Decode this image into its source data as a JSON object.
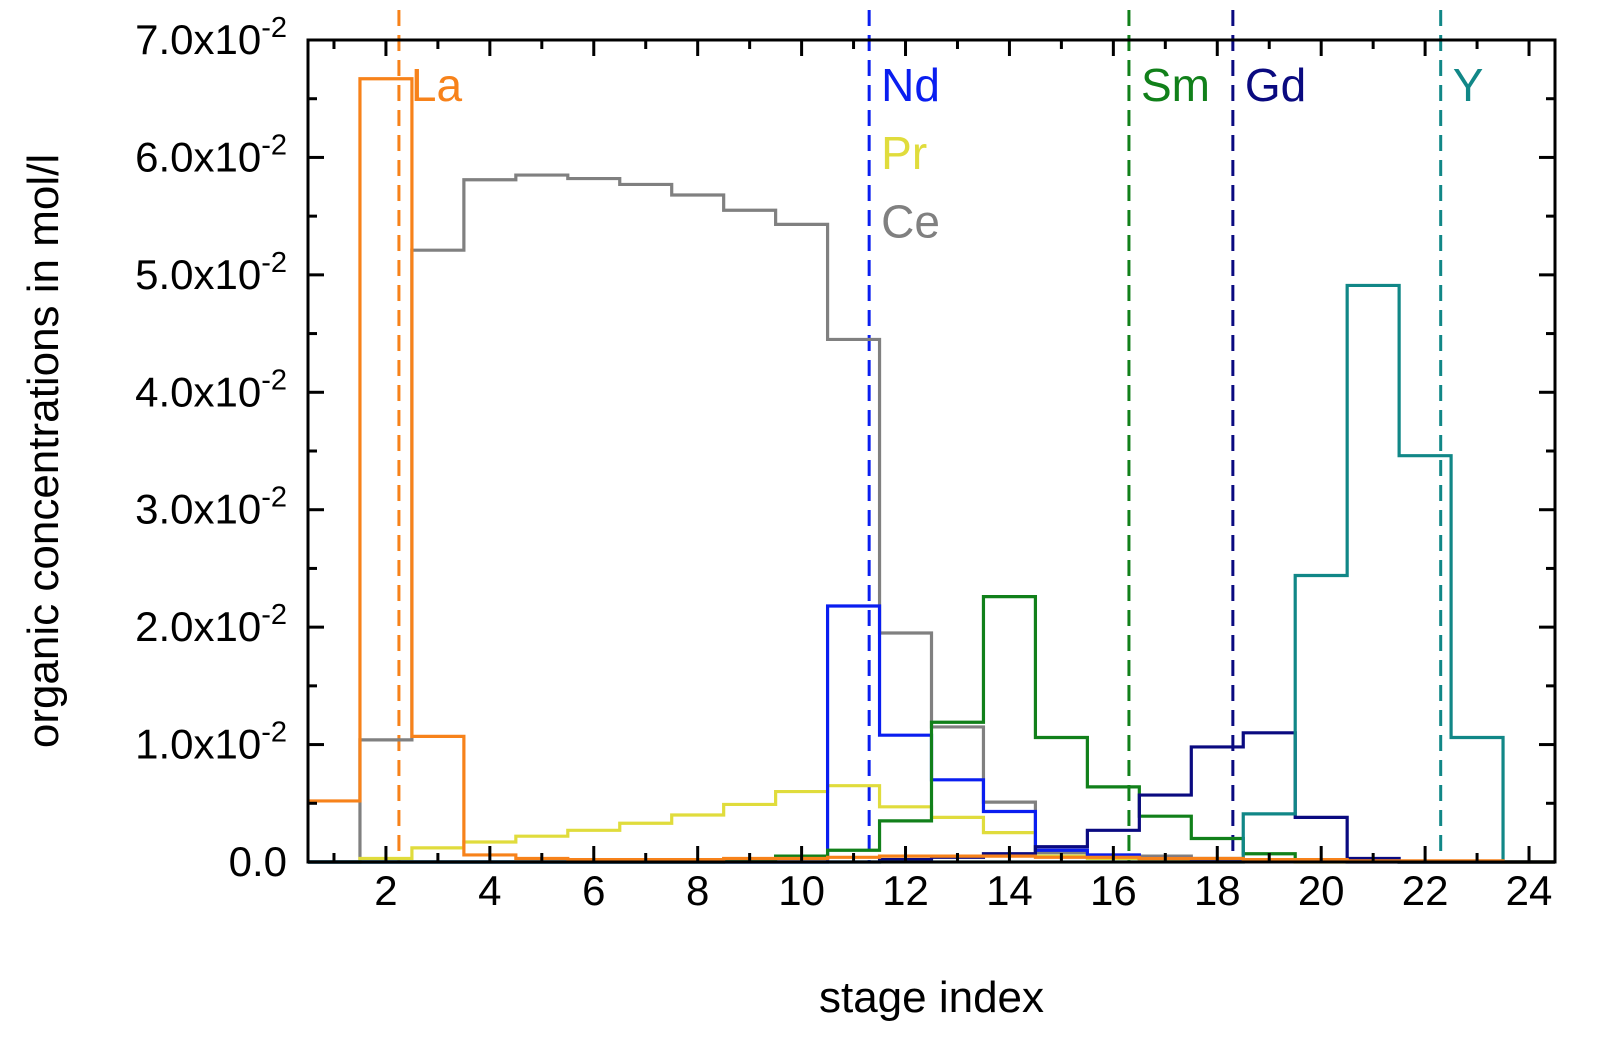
{
  "chart_data": {
    "type": "line",
    "style": "step",
    "title": "",
    "xlabel": "stage index",
    "ylabel": "organic concentrations in mol/l",
    "xlim": [
      0.5,
      24.5
    ],
    "ylim": [
      0,
      0.07
    ],
    "grid": false,
    "x_ticks": [
      2,
      4,
      6,
      8,
      10,
      12,
      14,
      16,
      18,
      20,
      22,
      24
    ],
    "x_tick_labels": [
      "2",
      "4",
      "6",
      "8",
      "10",
      "12",
      "14",
      "16",
      "18",
      "20",
      "22",
      "24"
    ],
    "y_ticks": [
      0,
      0.01,
      0.02,
      0.03,
      0.04,
      0.05,
      0.06,
      0.07
    ],
    "y_tick_labels": [
      {
        "mantissa": "0.0",
        "exponent": ""
      },
      {
        "mantissa": "1.0x10",
        "exponent": "-2"
      },
      {
        "mantissa": "2.0x10",
        "exponent": "-2"
      },
      {
        "mantissa": "3.0x10",
        "exponent": "-2"
      },
      {
        "mantissa": "4.0x10",
        "exponent": "-2"
      },
      {
        "mantissa": "5.0x10",
        "exponent": "-2"
      },
      {
        "mantissa": "6.0x10",
        "exponent": "-2"
      },
      {
        "mantissa": "7.0x10",
        "exponent": "-2"
      }
    ],
    "x": [
      1,
      2,
      3,
      4,
      5,
      6,
      7,
      8,
      9,
      10,
      11,
      12,
      13,
      14,
      15,
      16,
      17,
      18,
      19,
      20,
      21,
      22,
      23,
      24
    ],
    "series": [
      {
        "name": "Ce",
        "color": "#808080",
        "values": [
          0.0,
          0.0104,
          0.0521,
          0.0581,
          0.0585,
          0.0582,
          0.0577,
          0.0568,
          0.0555,
          0.0543,
          0.0445,
          0.0195,
          0.0115,
          0.0051,
          0.0008,
          0.0006,
          0.0005,
          0.0003,
          0.0002,
          0.0001,
          0.0001,
          0.0,
          0.0,
          0.0
        ]
      },
      {
        "name": "Pr",
        "color": "#e0dc3c",
        "values": [
          0.0,
          0.0003,
          0.0012,
          0.0017,
          0.0022,
          0.0027,
          0.0033,
          0.004,
          0.0049,
          0.006,
          0.0065,
          0.0047,
          0.0038,
          0.0025,
          0.0005,
          0.0003,
          0.0002,
          0.0001,
          0.0001,
          0.0,
          0.0,
          0.0,
          0.0,
          0.0
        ]
      },
      {
        "name": "Nd",
        "color": "#0a1ef0",
        "values": [
          0.0,
          0.0,
          0.0,
          0.0,
          0.0,
          0.0,
          0.0,
          0.0,
          0.0,
          0.0,
          0.0218,
          0.0108,
          0.007,
          0.0043,
          0.001,
          0.0006,
          0.0003,
          0.0002,
          0.0001,
          0.0001,
          0.0,
          0.0,
          0.0,
          0.0
        ]
      },
      {
        "name": "Sm",
        "color": "#11801a",
        "values": [
          0.0,
          0.0,
          0.0,
          0.0,
          0.0,
          0.0,
          0.0,
          0.0,
          0.0002,
          0.0005,
          0.001,
          0.0035,
          0.0119,
          0.0226,
          0.0106,
          0.0064,
          0.0039,
          0.002,
          0.0007,
          0.0002,
          0.0001,
          0.0,
          0.0,
          0.0
        ]
      },
      {
        "name": "Gd",
        "color": "#0a0a80",
        "values": [
          0.0,
          0.0,
          0.0,
          0.0,
          0.0,
          0.0,
          0.0,
          0.0,
          0.0,
          0.0,
          0.0,
          0.0002,
          0.0004,
          0.0007,
          0.0013,
          0.0027,
          0.0057,
          0.0098,
          0.011,
          0.0038,
          0.0003,
          0.0,
          0.0,
          0.0
        ]
      },
      {
        "name": "Y",
        "color": "#118787",
        "values": [
          0.0,
          0.0,
          0.0,
          0.0,
          0.0,
          0.0,
          0.0,
          0.0,
          0.0,
          0.0,
          0.0,
          0.0,
          0.0,
          0.0,
          0.0,
          0.0,
          0.0,
          0.0,
          0.0041,
          0.0244,
          0.0491,
          0.0346,
          0.0106,
          0.0
        ]
      },
      {
        "name": "La",
        "color": "#f7821a",
        "values": [
          0.0052,
          0.0667,
          0.0107,
          0.0006,
          0.0003,
          0.0002,
          0.0002,
          0.0002,
          0.0003,
          0.0003,
          0.0004,
          0.0005,
          0.0005,
          0.0005,
          0.0004,
          0.0004,
          0.0003,
          0.0003,
          0.0002,
          0.0002,
          0.0001,
          0.0001,
          0.0001,
          0.0
        ]
      }
    ],
    "annotations": [
      {
        "text": "La",
        "color": "#f7821a",
        "x": 2.25,
        "y": 0.0648,
        "vline_x": 2.25
      },
      {
        "text": "Nd",
        "color": "#0a1ef0",
        "x": 11.3,
        "y": 0.0648,
        "vline_x": 11.3
      },
      {
        "text": "Pr",
        "color": "#e0dc3c",
        "x": 11.3,
        "y": 0.059,
        "vline_x": null
      },
      {
        "text": "Ce",
        "color": "#808080",
        "x": 11.3,
        "y": 0.0532,
        "vline_x": null
      },
      {
        "text": "Sm",
        "color": "#11801a",
        "x": 16.3,
        "y": 0.0648,
        "vline_x": 16.3
      },
      {
        "text": "Gd",
        "color": "#0a0a80",
        "x": 18.3,
        "y": 0.0648,
        "vline_x": 18.3
      },
      {
        "text": "Y",
        "color": "#118787",
        "x": 22.3,
        "y": 0.0648,
        "vline_x": 22.3
      }
    ]
  }
}
